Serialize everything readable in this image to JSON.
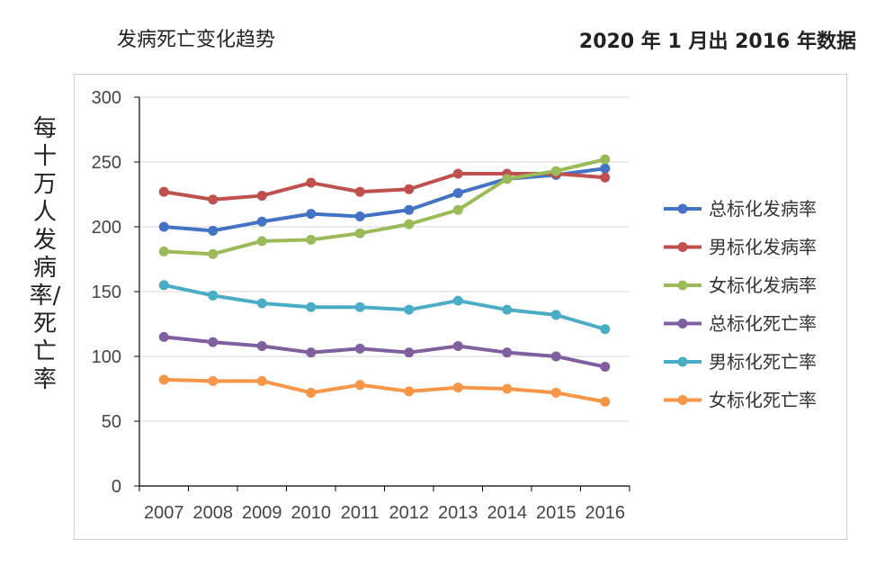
{
  "header": {
    "title": "发病死亡变化趋势",
    "source_note": "2020 年 1 月出 2016 年数据"
  },
  "chart_data": {
    "type": "line",
    "title": "发病死亡变化趋势",
    "xlabel": "",
    "ylabel": "每十万人发病率/死亡率",
    "categories": [
      "2007",
      "2008",
      "2009",
      "2010",
      "2011",
      "2012",
      "2013",
      "2014",
      "2015",
      "2016"
    ],
    "ylim": [
      0,
      300
    ],
    "yticks": [
      0,
      50,
      100,
      150,
      200,
      250,
      300
    ],
    "grid": true,
    "legend_position": "right",
    "series": [
      {
        "name": "总标化发病率",
        "color": "#4472c4",
        "values": [
          200,
          197,
          204,
          210,
          208,
          213,
          226,
          237,
          240,
          245
        ]
      },
      {
        "name": "男标化发病率",
        "color": "#c0504d",
        "values": [
          227,
          221,
          224,
          234,
          227,
          229,
          241,
          241,
          241,
          238
        ]
      },
      {
        "name": "女标化发病率",
        "color": "#9bbb59",
        "values": [
          181,
          179,
          189,
          190,
          195,
          202,
          213,
          237,
          243,
          252
        ]
      },
      {
        "name": "总标化死亡率",
        "color": "#7f5fa0",
        "values": [
          115,
          111,
          108,
          103,
          106,
          103,
          108,
          103,
          100,
          92
        ]
      },
      {
        "name": "男标化死亡率",
        "color": "#4bacc6",
        "values": [
          155,
          147,
          141,
          138,
          138,
          136,
          143,
          136,
          132,
          121
        ]
      },
      {
        "name": "女标化死亡率",
        "color": "#f79646",
        "values": [
          82,
          81,
          81,
          72,
          78,
          73,
          76,
          75,
          72,
          65
        ]
      }
    ]
  }
}
